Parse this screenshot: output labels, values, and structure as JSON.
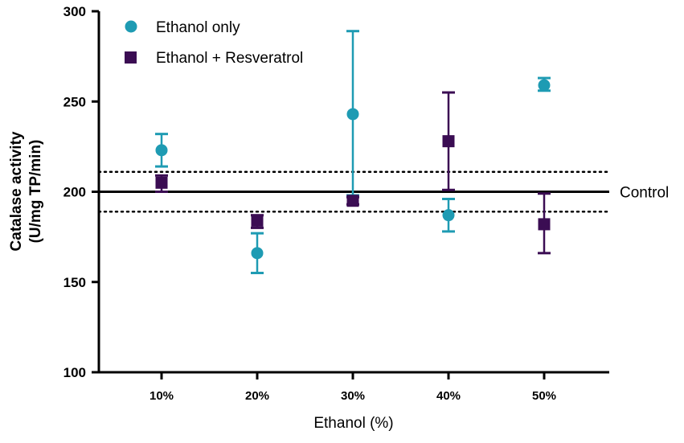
{
  "chart_data": {
    "type": "scatter",
    "xlabel": "Ethanol (%)",
    "ylabel_lines": [
      "Catalase activity",
      "(U/mg TP/min)"
    ],
    "ylim": [
      100,
      300
    ],
    "yticks": [
      100,
      150,
      200,
      250,
      300
    ],
    "categories": [
      "10%",
      "20%",
      "30%",
      "40%",
      "50%"
    ],
    "series": [
      {
        "name": "Ethanol only",
        "marker": "circle",
        "color": "#1e9bb3",
        "values": [
          223,
          166,
          243,
          187,
          259
        ],
        "err_low": [
          214,
          155,
          198,
          178,
          256
        ],
        "err_high": [
          232,
          177,
          289,
          196,
          263
        ]
      },
      {
        "name": "Ethanol + Resveratrol",
        "marker": "square",
        "color": "#3b0d53",
        "values": [
          205,
          184,
          195,
          228,
          182
        ],
        "err_low": [
          200,
          180,
          193,
          201,
          166
        ],
        "err_high": [
          209,
          187,
          197,
          255,
          199
        ]
      }
    ],
    "reference_lines": [
      {
        "label": "Control",
        "value": 200,
        "style": "solid"
      },
      {
        "value": 211,
        "style": "dotted"
      },
      {
        "value": 189,
        "style": "dotted"
      }
    ],
    "legend_position": "top-left"
  }
}
